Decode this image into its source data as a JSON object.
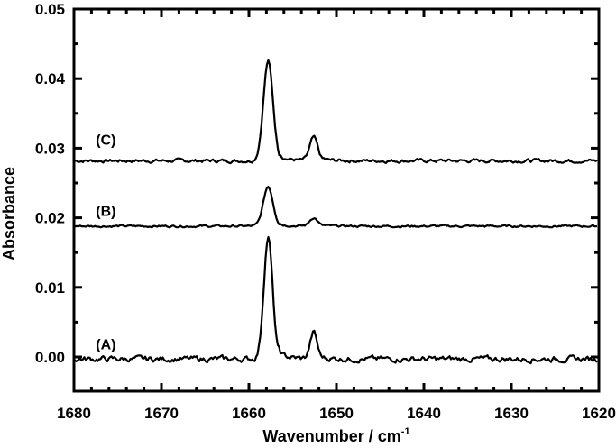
{
  "chart_data": {
    "type": "line",
    "title": "",
    "xlabel": "Wavenumber / cm",
    "xlabel_superscript": "-1",
    "ylabel": "Absorbance",
    "xlim": [
      1680,
      1620
    ],
    "ylim": [
      -0.005,
      0.05
    ],
    "x_reversed": true,
    "x_ticks": [
      1680,
      1670,
      1660,
      1650,
      1640,
      1630,
      1620
    ],
    "x_tick_labels": [
      "1680",
      "1670",
      "1660",
      "1650",
      "1640",
      "1630",
      "1620"
    ],
    "x_minor_step": 2,
    "y_ticks": [
      0.0,
      0.01,
      0.02,
      0.03,
      0.04,
      0.05
    ],
    "y_tick_labels": [
      "0.00",
      "0.01",
      "0.02",
      "0.03",
      "0.04",
      "0.05"
    ],
    "y_minor_step": 0.005,
    "grid": false,
    "legend": "inline labels",
    "line_color": "#000000",
    "series": [
      {
        "name": "(C)",
        "label_at": [
          1677.5,
          0.0305
        ],
        "baseline": 0.0282,
        "peaks": [
          {
            "x": 1657.8,
            "y": 0.0425,
            "width": 0.55
          },
          {
            "x": 1652.6,
            "y": 0.0315,
            "width": 0.45
          }
        ],
        "noise": 0.00025
      },
      {
        "name": "(B)",
        "label_at": [
          1677.5,
          0.0203
        ],
        "baseline": 0.0188,
        "peaks": [
          {
            "x": 1657.8,
            "y": 0.0245,
            "width": 0.55
          },
          {
            "x": 1652.6,
            "y": 0.02,
            "width": 0.45
          }
        ],
        "noise": 0.00015
      },
      {
        "name": "(A)",
        "label_at": [
          1677.5,
          0.0011
        ],
        "baseline": -0.0003,
        "peaks": [
          {
            "x": 1657.8,
            "y": 0.0172,
            "width": 0.5
          },
          {
            "x": 1652.6,
            "y": 0.0035,
            "width": 0.4
          }
        ],
        "noise": 0.0004
      }
    ]
  }
}
